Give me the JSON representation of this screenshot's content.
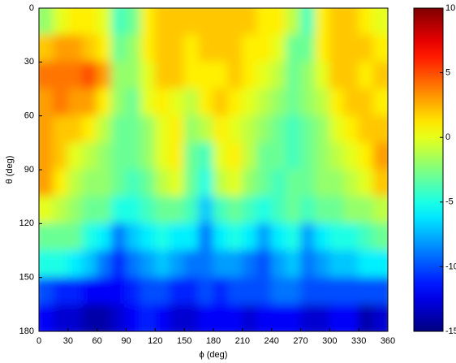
{
  "chart_data": {
    "type": "heatmap",
    "xlabel": "ϕ (deg)",
    "ylabel": "θ (deg)",
    "colormap": "jet",
    "y_inverted": true,
    "xlim": [
      0,
      360
    ],
    "xticks": [
      0,
      30,
      60,
      90,
      120,
      150,
      180,
      210,
      240,
      270,
      300,
      330,
      360
    ],
    "ylim": [
      0,
      180
    ],
    "yticks": [
      0,
      30,
      60,
      90,
      120,
      150,
      180
    ],
    "zlim": [
      -15,
      10
    ],
    "zticks": [
      10,
      5,
      0,
      -5,
      -10,
      -15
    ],
    "x": [
      7.5,
      22.5,
      37.5,
      52.5,
      67.5,
      82.5,
      97.5,
      112.5,
      127.5,
      142.5,
      157.5,
      172.5,
      187.5,
      202.5,
      217.5,
      232.5,
      247.5,
      262.5,
      277.5,
      292.5,
      307.5,
      322.5,
      337.5,
      352.5
    ],
    "y": [
      7.5,
      22.5,
      37.5,
      52.5,
      67.5,
      82.5,
      97.5,
      112.5,
      127.5,
      142.5,
      157.5,
      172.5
    ],
    "z": [
      [
        -2,
        0,
        1,
        1,
        0,
        -4,
        -3,
        1,
        2,
        2,
        2,
        2,
        2,
        2,
        2,
        1,
        1,
        -1,
        -4,
        1,
        2,
        2,
        1,
        0
      ],
      [
        2,
        3,
        3,
        2,
        1,
        -3,
        -2,
        1,
        2,
        2,
        1,
        2,
        2,
        2,
        1,
        1,
        0,
        -3,
        -3,
        1,
        2,
        2,
        2,
        1
      ],
      [
        4,
        4,
        4,
        5,
        3,
        -2,
        -2,
        0,
        2,
        2,
        1,
        1,
        1,
        2,
        1,
        0,
        -1,
        -3,
        -2,
        0,
        2,
        2,
        1,
        2
      ],
      [
        3,
        4,
        3,
        3,
        1,
        -2,
        -3,
        0,
        1,
        0,
        -1,
        1,
        2,
        1,
        0,
        -1,
        -2,
        -3,
        -2,
        -1,
        1,
        2,
        2,
        1
      ],
      [
        3,
        2,
        2,
        1,
        -1,
        -3,
        -3,
        -2,
        0,
        1,
        -2,
        -1,
        1,
        0,
        -1,
        -2,
        -3,
        -4,
        -3,
        -2,
        0,
        1,
        2,
        2
      ],
      [
        3,
        2,
        0,
        -1,
        -2,
        -3,
        -3,
        -2,
        0,
        1,
        -3,
        -4,
        0,
        1,
        -1,
        -3,
        -3,
        -4,
        -3,
        -2,
        -1,
        0,
        1,
        3
      ],
      [
        3,
        1,
        -1,
        -2,
        -2,
        -3,
        -4,
        -3,
        -1,
        0,
        -3,
        -5,
        -1,
        0,
        -2,
        -3,
        -4,
        -3,
        -3,
        -2,
        -2,
        -1,
        0,
        2
      ],
      [
        0,
        -1,
        -2,
        -3,
        -3,
        -5,
        -5,
        -4,
        -3,
        -3,
        -4,
        -7,
        -4,
        -3,
        -4,
        -5,
        -4,
        -3,
        -4,
        -3,
        -3,
        -2,
        -2,
        -1
      ],
      [
        -3,
        -3,
        -3,
        -5,
        -6,
        -9,
        -7,
        -6,
        -5,
        -6,
        -6,
        -9,
        -6,
        -5,
        -6,
        -8,
        -6,
        -5,
        -8,
        -6,
        -5,
        -5,
        -4,
        -3
      ],
      [
        -5,
        -5,
        -6,
        -7,
        -9,
        -11,
        -9,
        -8,
        -7,
        -8,
        -9,
        -9,
        -8,
        -8,
        -9,
        -10,
        -8,
        -7,
        -9,
        -8,
        -7,
        -7,
        -6,
        -6
      ],
      [
        -10,
        -11,
        -11,
        -12,
        -12,
        -12,
        -11,
        -10,
        -10,
        -11,
        -11,
        -10,
        -11,
        -10,
        -10,
        -10,
        -9,
        -9,
        -10,
        -10,
        -10,
        -10,
        -10,
        -10
      ],
      [
        -12,
        -13,
        -13,
        -14,
        -14,
        -13,
        -12,
        -11,
        -12,
        -13,
        -13,
        -12,
        -12,
        -12,
        -13,
        -12,
        -12,
        -12,
        -13,
        -13,
        -12,
        -12,
        -14,
        -13
      ]
    ]
  }
}
